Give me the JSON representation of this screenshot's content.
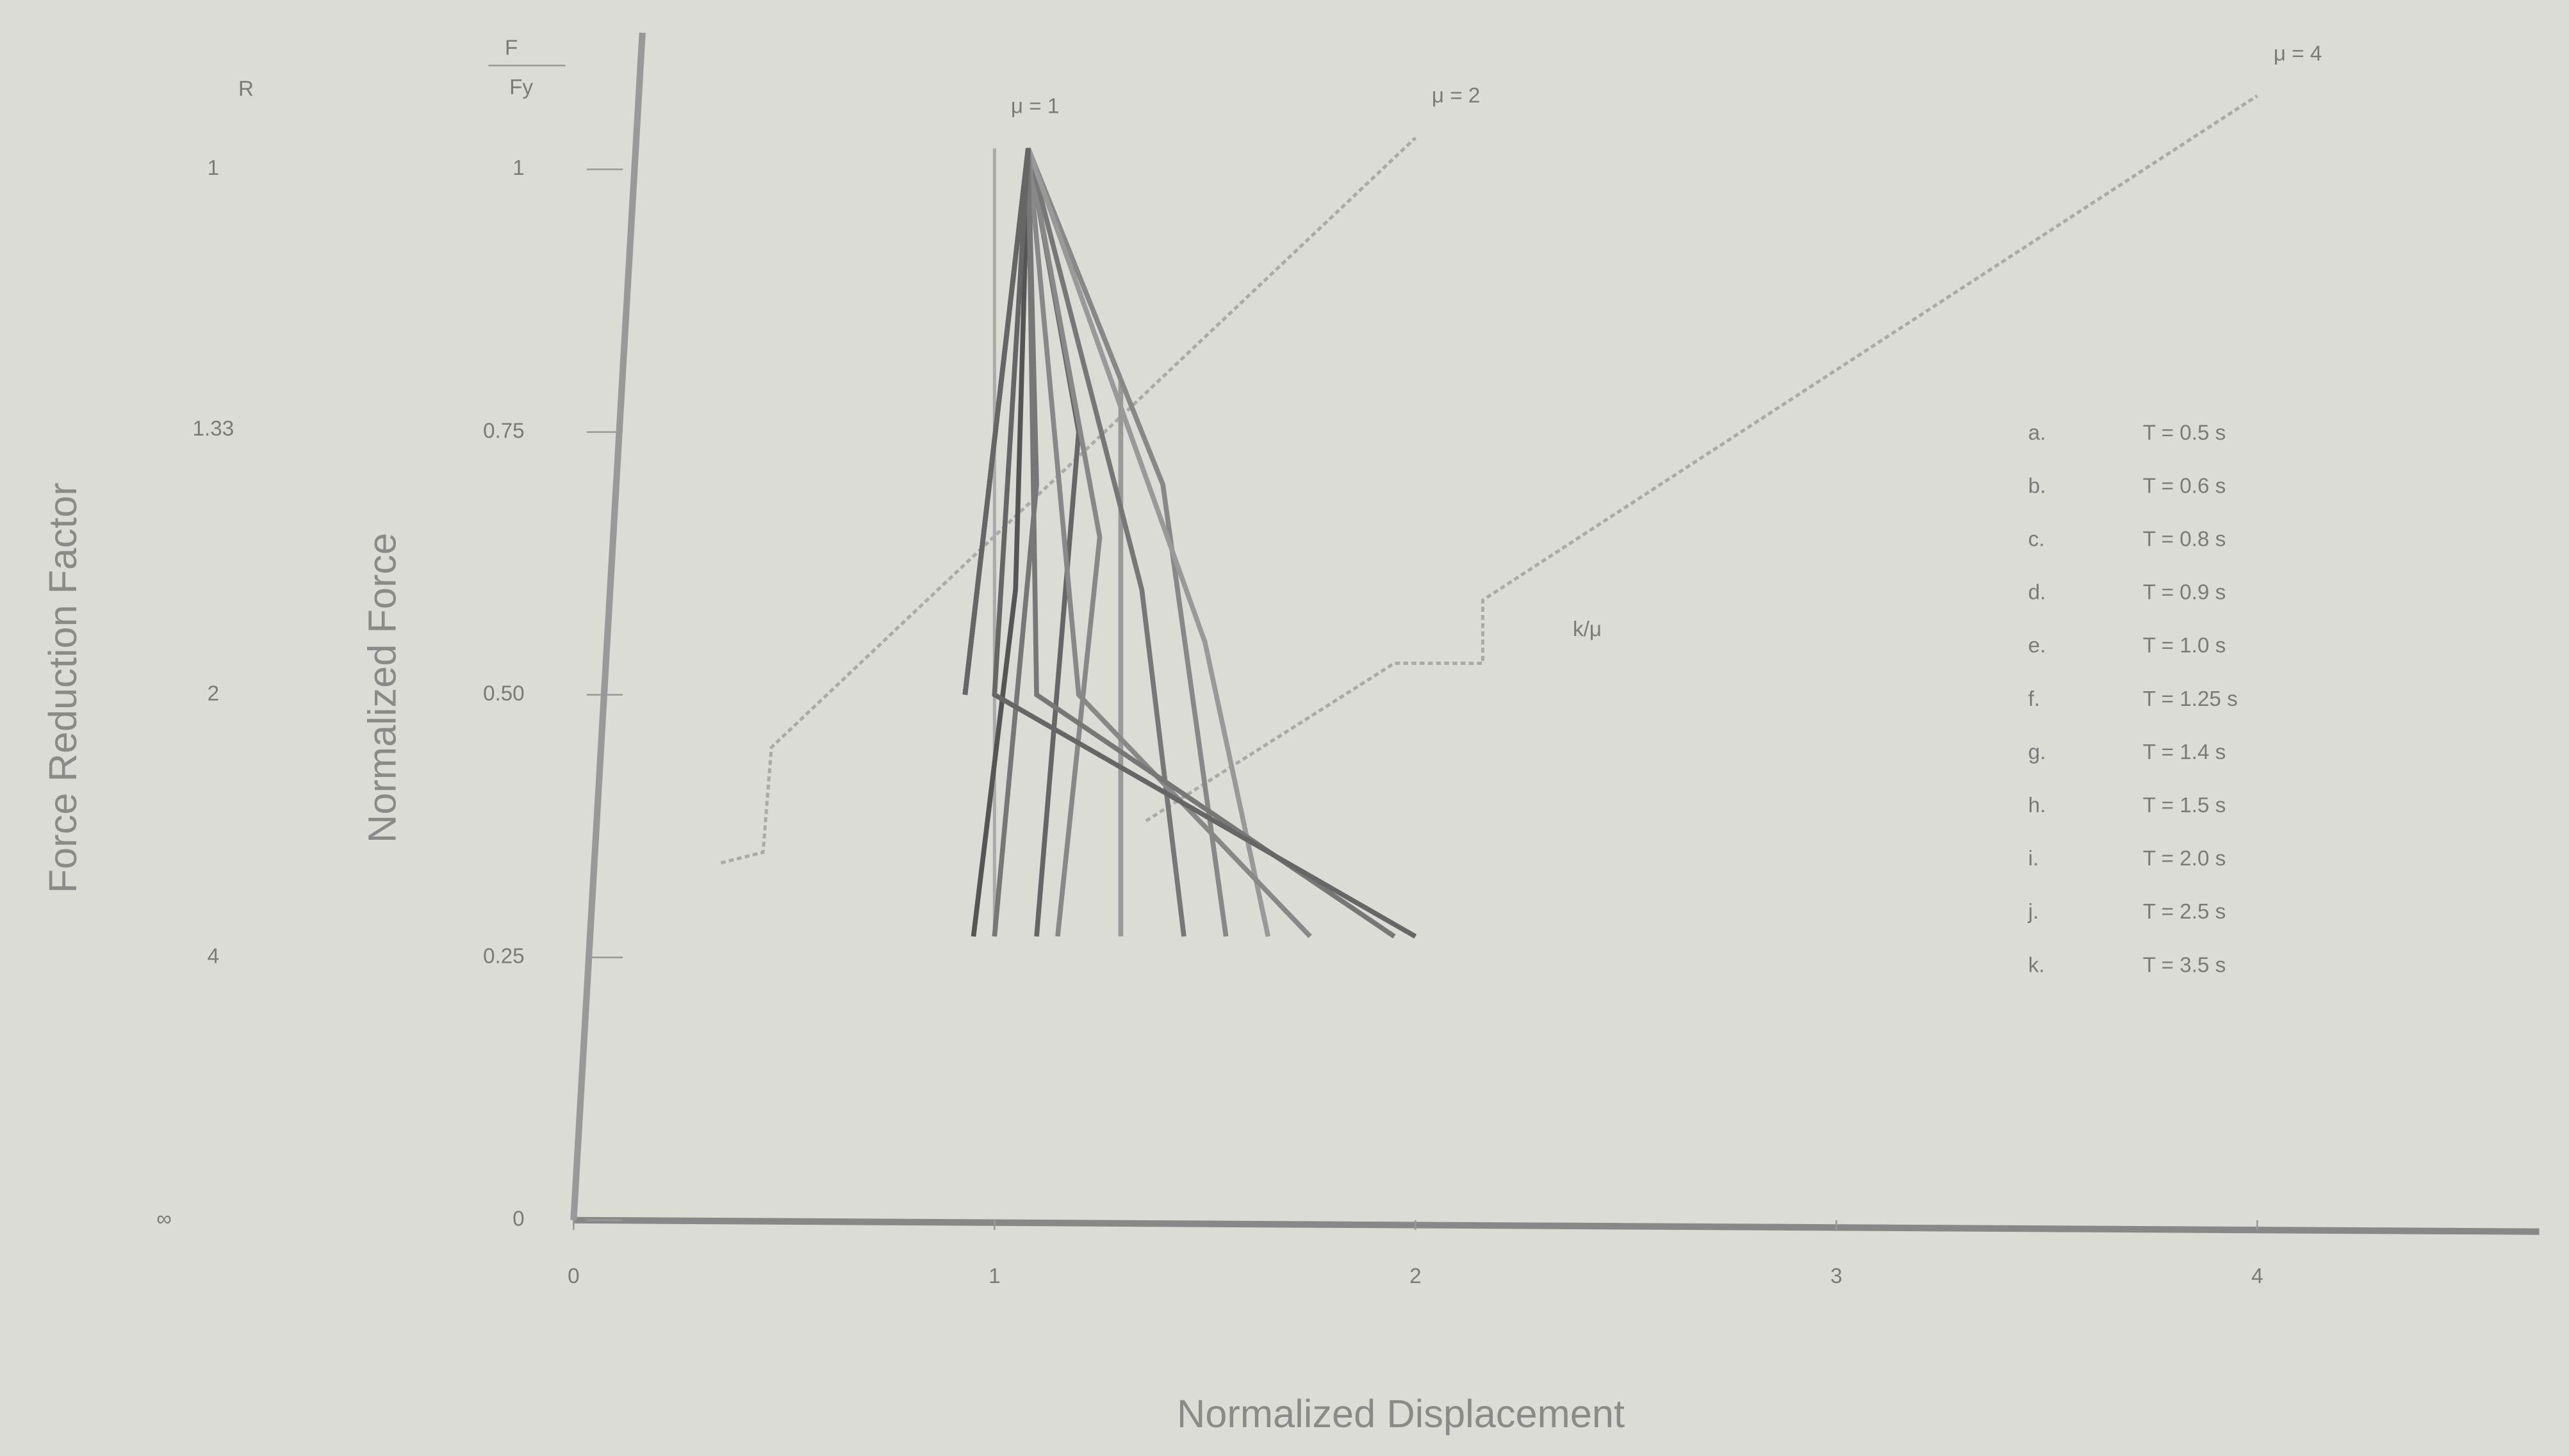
{
  "chart_data": {
    "type": "line",
    "x_label": "Normalized Displacement",
    "y_label": "Normalized Force",
    "y2_label": "Force Reduction Factor",
    "y_symbol": {
      "numerator": "F",
      "denominator": "Fy"
    },
    "y2_symbol": "R",
    "xlim": [
      0,
      4.67
    ],
    "ylim": [
      0,
      1.13
    ],
    "xticks": [
      0,
      1,
      2,
      3,
      4
    ],
    "yticks": [
      0,
      0.25,
      {
        "value": 0.5,
        "label": "0.50"
      },
      0.75,
      1
    ],
    "y2scale": "reciprocal",
    "y2ticks": [
      1,
      1.33,
      2,
      4
    ],
    "y2_infinity_label": "∞",
    "series": [
      {
        "label": "a.",
        "name": "T = 0.5 s",
        "color": "#555",
        "x": [
          0.93,
          1.08,
          1.05,
          0.95
        ],
        "values": [
          0.5,
          1.02,
          0.6,
          0.27
        ]
      },
      {
        "label": "b.",
        "name": "T = 0.6 s",
        "color": "#777",
        "x": [
          0.93,
          1.08,
          1.1,
          1.0
        ],
        "values": [
          0.5,
          1.02,
          0.7,
          0.27
        ]
      },
      {
        "label": "c.",
        "name": "T = 0.8 s",
        "color": "#666",
        "x": [
          0.93,
          1.08,
          1.2,
          1.1
        ],
        "values": [
          0.5,
          1.02,
          0.75,
          0.27
        ]
      },
      {
        "label": "d.",
        "name": "T = 0.9 s",
        "color": "#888",
        "x": [
          0.93,
          1.08,
          1.25,
          1.15
        ],
        "values": [
          0.5,
          1.02,
          0.65,
          0.27
        ]
      },
      {
        "label": "e.",
        "name": "T = 1.0 s",
        "color": "#999",
        "x": [
          0.93,
          1.08,
          1.3,
          1.3
        ],
        "values": [
          0.5,
          1.02,
          0.8,
          0.27
        ]
      },
      {
        "label": "f.",
        "name": "T = 1.25 s",
        "color": "#777",
        "x": [
          0.93,
          1.08,
          1.35,
          1.45
        ],
        "values": [
          0.5,
          1.02,
          0.6,
          0.27
        ]
      },
      {
        "label": "g.",
        "name": "T = 1.4 s",
        "color": "#888",
        "x": [
          0.93,
          1.08,
          1.4,
          1.55
        ],
        "values": [
          0.5,
          1.02,
          0.7,
          0.27
        ]
      },
      {
        "label": "h.",
        "name": "T = 1.5 s",
        "color": "#999",
        "x": [
          0.93,
          1.08,
          1.5,
          1.65
        ],
        "values": [
          0.5,
          1.02,
          0.55,
          0.27
        ]
      },
      {
        "label": "i.",
        "name": "T = 2.0 s",
        "color": "#888",
        "x": [
          0.93,
          1.08,
          1.2,
          1.75
        ],
        "values": [
          0.5,
          1.02,
          0.5,
          0.27
        ]
      },
      {
        "label": "j.",
        "name": "T = 2.5 s",
        "color": "#777",
        "x": [
          0.93,
          1.08,
          1.1,
          1.95
        ],
        "values": [
          0.5,
          1.02,
          0.5,
          0.27
        ]
      },
      {
        "label": "k.",
        "name": "T = 3.5 s",
        "color": "#666",
        "x": [
          0.93,
          1.08,
          1.0,
          2.0
        ],
        "values": [
          0.5,
          1.02,
          0.5,
          0.27
        ]
      }
    ],
    "mu_lines": [
      {
        "name": "μ = 1",
        "x": [
          1.0,
          1.0
        ],
        "values": [
          0.27,
          1.02
        ]
      },
      {
        "name": "μ = 2",
        "x": [
          0.35,
          0.45,
          0.47,
          2.0
        ],
        "values": [
          0.34,
          0.35,
          0.45,
          1.03
        ]
      },
      {
        "name": "μ = 4",
        "x": [
          1.36,
          1.95,
          2.16,
          2.16,
          4.0
        ],
        "values": [
          0.38,
          0.53,
          0.53,
          0.59,
          1.07
        ]
      }
    ],
    "annotation": "k/μ"
  }
}
